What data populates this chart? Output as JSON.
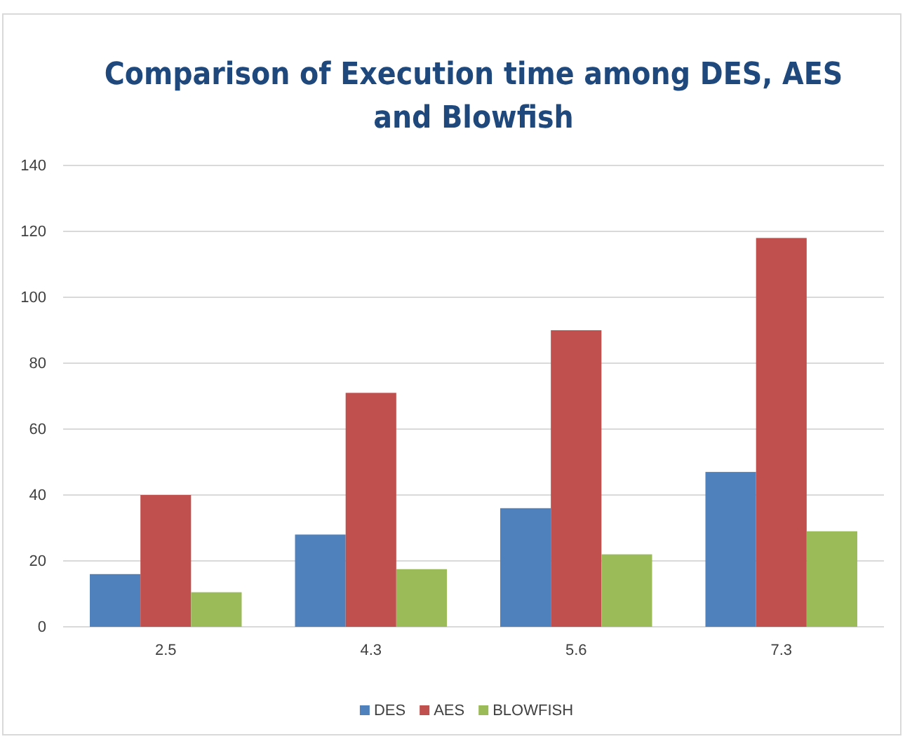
{
  "chart_data": {
    "type": "bar",
    "title": "Comparison of Execution time among DES, AES and Blowfish",
    "categories": [
      "2.5",
      "4.3",
      "5.6",
      "7.3"
    ],
    "series": [
      {
        "name": "DES",
        "color": "#4f81bd",
        "values": [
          16,
          28,
          36,
          47
        ]
      },
      {
        "name": "AES",
        "color": "#c0504d",
        "values": [
          40,
          71,
          90,
          118
        ]
      },
      {
        "name": "BLOWFISH",
        "color": "#9bbb59",
        "values": [
          10.5,
          17.5,
          22,
          29
        ]
      }
    ],
    "ylim": [
      0,
      140
    ],
    "yticks": [
      0,
      20,
      40,
      60,
      80,
      100,
      120,
      140
    ],
    "grid": "y",
    "legend": "bottom"
  }
}
